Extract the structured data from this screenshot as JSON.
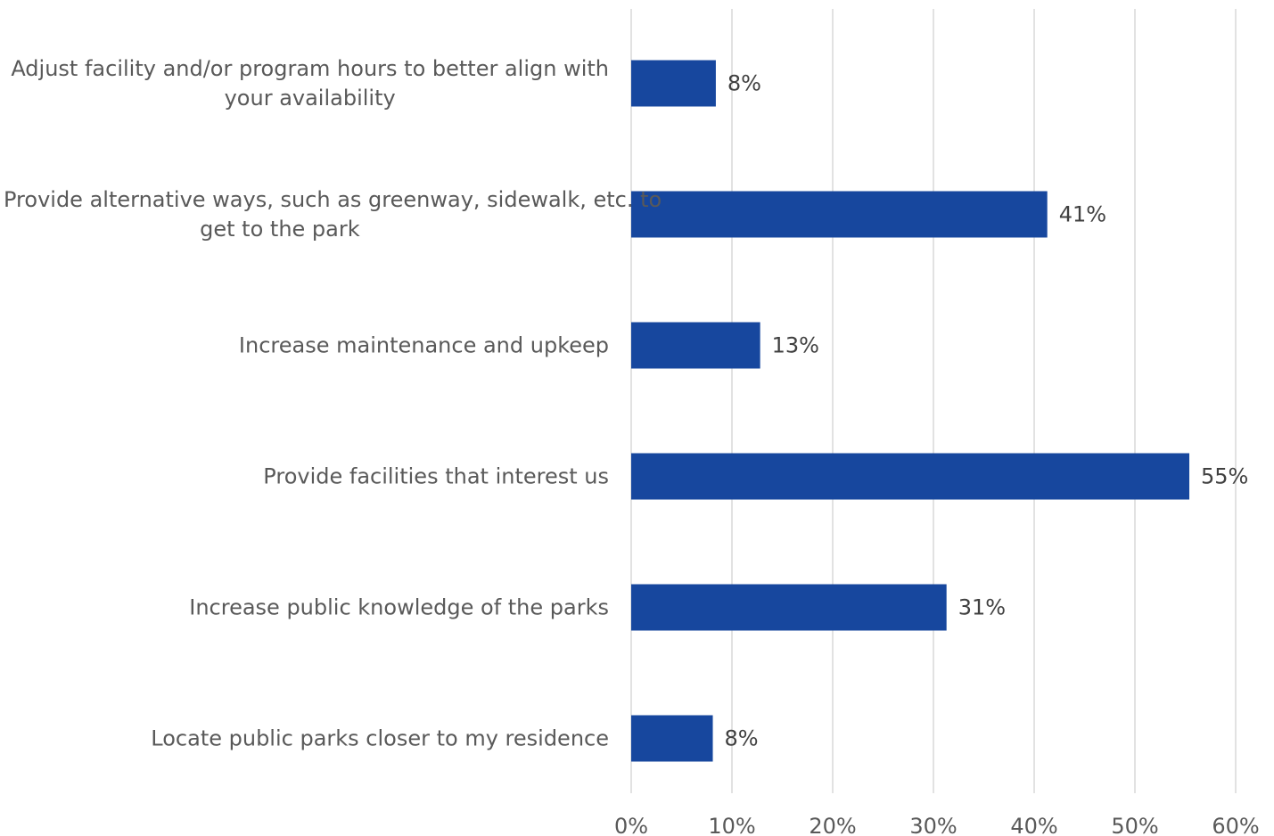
{
  "chart_data": {
    "type": "bar",
    "orientation": "horizontal",
    "categories": [
      "Adjust facility and/or program hours to better align with your availability",
      "Provide alternative ways, such as greenway, sidewalk, etc. to get to the park",
      "Increase maintenance and upkeep",
      "Provide facilities that interest us",
      "Increase public knowledge of the parks",
      "Locate public parks closer to my residence"
    ],
    "category_lines": [
      [
        "Adjust facility and/or program hours to better align with",
        "your availability"
      ],
      [
        "Provide alternative ways, such as greenway, sidewalk, etc. to",
        "get to the park"
      ],
      [
        "Increase maintenance and upkeep"
      ],
      [
        "Provide facilities that interest us"
      ],
      [
        "Increase public knowledge of the parks"
      ],
      [
        "Locate public parks closer to my residence"
      ]
    ],
    "values": [
      8.4,
      41.3,
      12.8,
      55.4,
      31.3,
      8.1
    ],
    "data_labels": [
      "8%",
      "41%",
      "13%",
      "55%",
      "31%",
      "8%"
    ],
    "xlim": [
      0,
      60
    ],
    "xticks": [
      0,
      10,
      20,
      30,
      40,
      50,
      60
    ],
    "xtick_labels": [
      "0%",
      "10%",
      "20%",
      "30%",
      "40%",
      "50%",
      "60%"
    ],
    "title": "",
    "xlabel": "",
    "ylabel": "",
    "grid": "vertical",
    "legend": "none",
    "bar_color": "#17479E",
    "grid_color": "#D9D9D9"
  }
}
